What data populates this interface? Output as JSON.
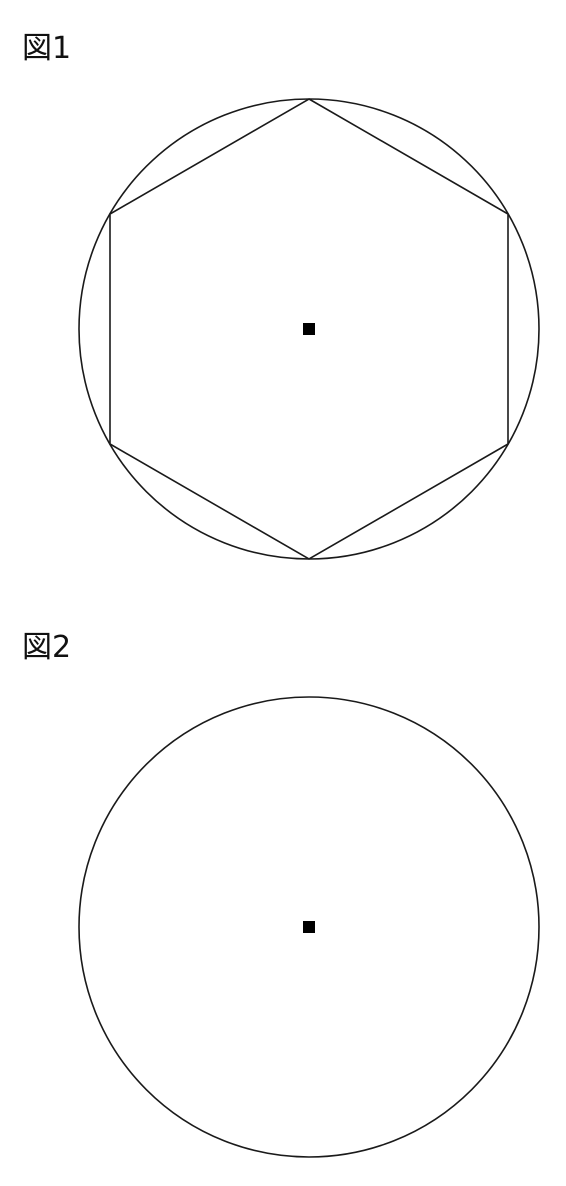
{
  "figures": [
    {
      "label": "図1",
      "shapes": [
        "circle",
        "inscribed-regular-hexagon",
        "center-point"
      ],
      "hexagon_sides": 6
    },
    {
      "label": "図2",
      "shapes": [
        "circle",
        "center-point"
      ]
    }
  ],
  "colors": {
    "stroke": "#1a1a1a",
    "center_point": "#000000",
    "background": "#ffffff"
  }
}
